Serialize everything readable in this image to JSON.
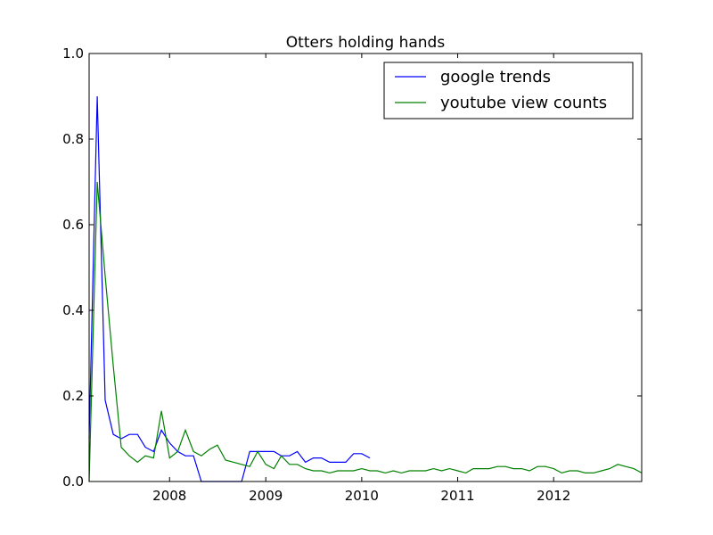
{
  "chart_data": {
    "type": "line",
    "title": "Otters holding hands",
    "xlabel": "",
    "ylabel": "",
    "xlim": [
      "2007-03-01",
      "2012-12-01"
    ],
    "ylim": [
      0,
      1
    ],
    "x_ticks": [
      "2008",
      "2009",
      "2010",
      "2011",
      "2012"
    ],
    "y_ticks": [
      "0.0",
      "0.2",
      "0.4",
      "0.6",
      "0.8",
      "1.0"
    ],
    "legend_position": "top-right",
    "grid": false,
    "series": [
      {
        "name": "google trends",
        "color": "#0000ff",
        "points": [
          [
            "2007-03-01",
            0.1
          ],
          [
            "2007-04-01",
            0.9
          ],
          [
            "2007-05-01",
            0.19
          ],
          [
            "2007-06-01",
            0.11
          ],
          [
            "2007-07-01",
            0.1
          ],
          [
            "2007-08-01",
            0.11
          ],
          [
            "2007-09-01",
            0.11
          ],
          [
            "2007-10-01",
            0.08
          ],
          [
            "2007-11-01",
            0.07
          ],
          [
            "2007-12-01",
            0.12
          ],
          [
            "2008-01-01",
            0.09
          ],
          [
            "2008-02-01",
            0.07
          ],
          [
            "2008-03-01",
            0.06
          ],
          [
            "2008-04-01",
            0.06
          ],
          [
            "2008-05-01",
            0.0
          ],
          [
            "2008-06-01",
            0.0
          ],
          [
            "2008-07-01",
            0.0
          ],
          [
            "2008-08-01",
            0.0
          ],
          [
            "2008-09-01",
            0.0
          ],
          [
            "2008-10-01",
            0.0
          ],
          [
            "2008-11-01",
            0.07
          ],
          [
            "2008-12-01",
            0.07
          ],
          [
            "2009-01-01",
            0.07
          ],
          [
            "2009-02-01",
            0.07
          ],
          [
            "2009-03-01",
            0.06
          ],
          [
            "2009-04-01",
            0.06
          ],
          [
            "2009-05-01",
            0.07
          ],
          [
            "2009-06-01",
            0.045
          ],
          [
            "2009-07-01",
            0.055
          ],
          [
            "2009-08-01",
            0.055
          ],
          [
            "2009-09-01",
            0.045
          ],
          [
            "2009-10-01",
            0.045
          ],
          [
            "2009-11-01",
            0.045
          ],
          [
            "2009-12-01",
            0.065
          ],
          [
            "2010-01-01",
            0.065
          ],
          [
            "2010-02-01",
            0.055
          ]
        ]
      },
      {
        "name": "youtube view counts",
        "color": "#008000",
        "points": [
          [
            "2007-03-01",
            0.0
          ],
          [
            "2007-04-01",
            0.7
          ],
          [
            "2007-05-01",
            0.48
          ],
          [
            "2007-06-01",
            0.27
          ],
          [
            "2007-07-01",
            0.08
          ],
          [
            "2007-08-01",
            0.06
          ],
          [
            "2007-09-01",
            0.045
          ],
          [
            "2007-10-01",
            0.06
          ],
          [
            "2007-11-01",
            0.055
          ],
          [
            "2007-12-01",
            0.165
          ],
          [
            "2008-01-01",
            0.055
          ],
          [
            "2008-02-01",
            0.07
          ],
          [
            "2008-03-01",
            0.12
          ],
          [
            "2008-04-01",
            0.07
          ],
          [
            "2008-05-01",
            0.06
          ],
          [
            "2008-06-01",
            0.075
          ],
          [
            "2008-07-01",
            0.085
          ],
          [
            "2008-08-01",
            0.05
          ],
          [
            "2008-09-01",
            0.045
          ],
          [
            "2008-10-01",
            0.04
          ],
          [
            "2008-11-01",
            0.035
          ],
          [
            "2008-12-01",
            0.07
          ],
          [
            "2009-01-01",
            0.04
          ],
          [
            "2009-02-01",
            0.03
          ],
          [
            "2009-03-01",
            0.06
          ],
          [
            "2009-04-01",
            0.04
          ],
          [
            "2009-05-01",
            0.04
          ],
          [
            "2009-06-01",
            0.03
          ],
          [
            "2009-07-01",
            0.025
          ],
          [
            "2009-08-01",
            0.025
          ],
          [
            "2009-09-01",
            0.02
          ],
          [
            "2009-10-01",
            0.025
          ],
          [
            "2009-11-01",
            0.025
          ],
          [
            "2009-12-01",
            0.025
          ],
          [
            "2010-01-01",
            0.03
          ],
          [
            "2010-02-01",
            0.025
          ],
          [
            "2010-03-01",
            0.025
          ],
          [
            "2010-04-01",
            0.02
          ],
          [
            "2010-05-01",
            0.025
          ],
          [
            "2010-06-01",
            0.02
          ],
          [
            "2010-07-01",
            0.025
          ],
          [
            "2010-08-01",
            0.025
          ],
          [
            "2010-09-01",
            0.025
          ],
          [
            "2010-10-01",
            0.03
          ],
          [
            "2010-11-01",
            0.025
          ],
          [
            "2010-12-01",
            0.03
          ],
          [
            "2011-01-01",
            0.025
          ],
          [
            "2011-02-01",
            0.02
          ],
          [
            "2011-03-01",
            0.03
          ],
          [
            "2011-04-01",
            0.03
          ],
          [
            "2011-05-01",
            0.03
          ],
          [
            "2011-06-01",
            0.035
          ],
          [
            "2011-07-01",
            0.035
          ],
          [
            "2011-08-01",
            0.03
          ],
          [
            "2011-09-01",
            0.03
          ],
          [
            "2011-10-01",
            0.025
          ],
          [
            "2011-11-01",
            0.035
          ],
          [
            "2011-12-01",
            0.035
          ],
          [
            "2012-01-01",
            0.03
          ],
          [
            "2012-02-01",
            0.02
          ],
          [
            "2012-03-01",
            0.025
          ],
          [
            "2012-04-01",
            0.025
          ],
          [
            "2012-05-01",
            0.02
          ],
          [
            "2012-06-01",
            0.02
          ],
          [
            "2012-07-01",
            0.025
          ],
          [
            "2012-08-01",
            0.03
          ],
          [
            "2012-09-01",
            0.04
          ],
          [
            "2012-10-01",
            0.035
          ],
          [
            "2012-11-01",
            0.03
          ],
          [
            "2012-12-01",
            0.02
          ]
        ]
      }
    ]
  }
}
